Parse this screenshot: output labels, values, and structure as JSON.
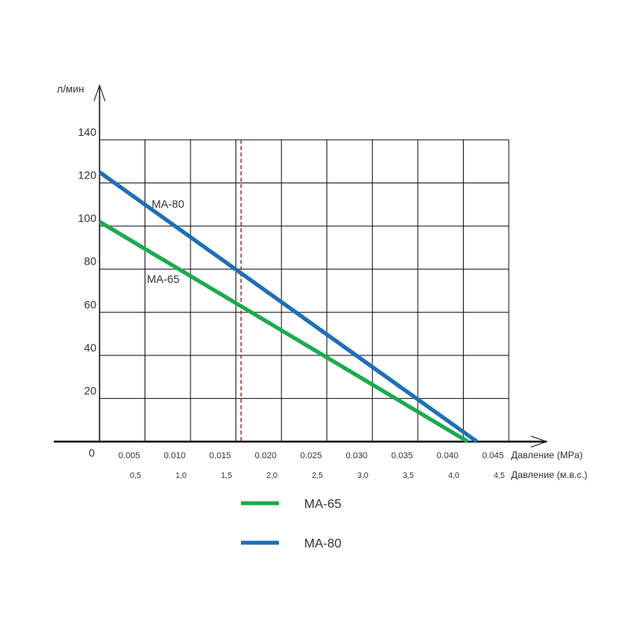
{
  "chart_data": {
    "type": "line",
    "title": "",
    "ylabel": "л/мин",
    "xlabel": "Давление (MPa)",
    "xlabel2": "Давление (м.в.с.)",
    "xlim": [
      0,
      0.045
    ],
    "ylim": [
      0,
      140
    ],
    "grid": true,
    "origin_label": "0",
    "y_ticks": [
      20,
      40,
      60,
      80,
      100,
      120,
      140
    ],
    "y_tick_labels": [
      "20",
      "40",
      "60",
      "80",
      "100",
      "120",
      "140"
    ],
    "x_ticks": [
      0.005,
      0.01,
      0.015,
      0.02,
      0.025,
      0.03,
      0.035,
      0.04,
      0.045
    ],
    "x_tick_labels": [
      "0.005",
      "0.010",
      "0.015",
      "0.020",
      "0.025",
      "0.030",
      "0.035",
      "0.040",
      "0.045"
    ],
    "x2_tick_labels": [
      "0,5",
      "1,0",
      "1,5",
      "2,0",
      "2,5",
      "3,0",
      "3,5",
      "4,0",
      "4,5"
    ],
    "reference_line": {
      "x": 0.016,
      "color": "#c0282d",
      "style": "dashed"
    },
    "series": [
      {
        "name": "MA-65",
        "color": "#1aab4b",
        "x": [
          0,
          0.0405
        ],
        "y": [
          102,
          0
        ]
      },
      {
        "name": "MA-80",
        "color": "#1b6fbb",
        "x": [
          0,
          0.0415
        ],
        "y": [
          125,
          0
        ]
      }
    ],
    "legend": {
      "placement": "bottom",
      "entries": [
        "MA-65",
        "MA-80"
      ]
    }
  }
}
